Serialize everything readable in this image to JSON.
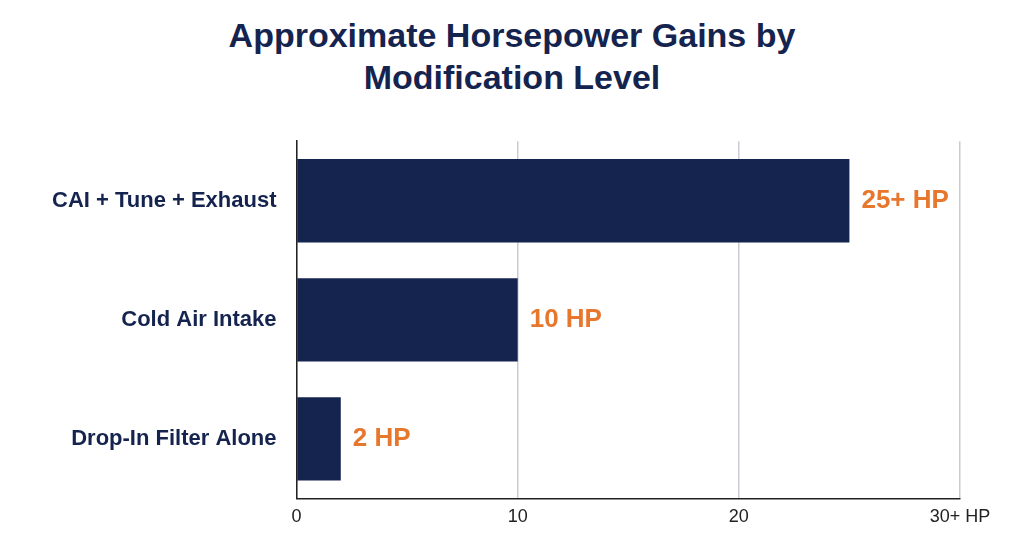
{
  "chart_data": {
    "type": "bar",
    "title": "Approximate Horsepower Gains by Modification Level",
    "orientation": "horizontal",
    "categories": [
      "CAI + Tune + Exhaust",
      "Cold Air Intake",
      "Drop-In Filter Alone"
    ],
    "values": [
      25,
      10,
      2
    ],
    "value_labels": [
      "25+ HP",
      "10 HP",
      "2 HP"
    ],
    "data_labels": true,
    "color": "#15244f",
    "xlim": [
      0,
      30
    ],
    "xticks": [
      0,
      10,
      20,
      {
        "value": 30,
        "label": "30+ HP"
      }
    ],
    "grid": true
  }
}
